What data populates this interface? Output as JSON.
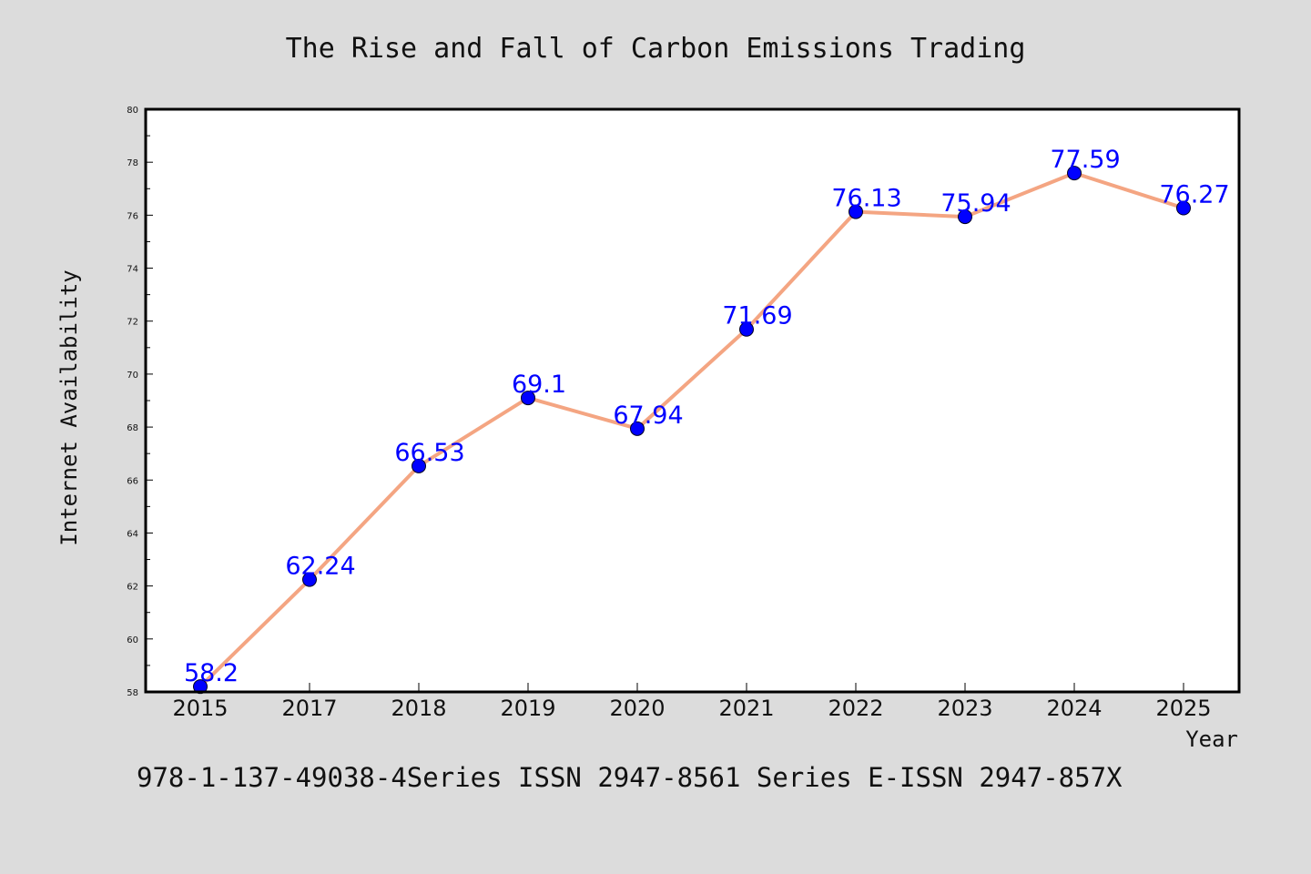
{
  "chart_data": {
    "type": "line",
    "title": "The Rise and Fall of Carbon Emissions Trading",
    "xlabel": "Year",
    "ylabel": "Internet Availability",
    "categories": [
      "2015",
      "2017",
      "2018",
      "2019",
      "2020",
      "2021",
      "2022",
      "2023",
      "2024",
      "2025"
    ],
    "series": [
      {
        "values": [
          58.2,
          62.24,
          66.53,
          69.1,
          67.94,
          71.69,
          76.13,
          75.94,
          77.59,
          76.27
        ],
        "labels": [
          "58.2",
          "62.24",
          "66.53",
          "69.1",
          "67.94",
          "71.69",
          "76.13",
          "75.94",
          "77.59",
          "76.27"
        ],
        "line_color": "#f4a582",
        "marker_color": "#0000ff"
      }
    ],
    "ylim": [
      58,
      80
    ],
    "yticks": [
      "58",
      "60",
      "62",
      "64",
      "66",
      "68",
      "70",
      "72",
      "74",
      "76",
      "78",
      "80"
    ],
    "grid": false,
    "legend": "none"
  },
  "footer": "978-1-137-49038-4Series ISSN 2947-8561 Series E-ISSN 2947-857X",
  "colors": {
    "background": "#dcdcdc",
    "plot_background": "#ffffff",
    "label_color": "#0000ff"
  }
}
